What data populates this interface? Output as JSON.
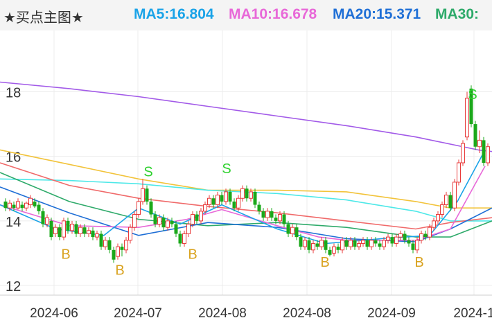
{
  "header": {
    "title": "★买点主图★",
    "ma": [
      {
        "label": "MA5:16.804",
        "color": "#1aa3e8"
      },
      {
        "label": "MA10:16.678",
        "color": "#e868d8"
      },
      {
        "label": "MA20:15.371",
        "color": "#1f6fd6"
      },
      {
        "label": "MA30:",
        "color": "#2eaa6a"
      }
    ]
  },
  "chart_data": {
    "type": "candlestick",
    "y_ticks": [
      "18",
      "16",
      "14",
      "12"
    ],
    "ylim": [
      11.7,
      19.9
    ],
    "x_ticks": [
      "2024-06",
      "2024-07",
      "2024-08",
      "2024-08",
      "2024-09",
      "2024-1"
    ],
    "colors": {
      "up": "#e83a3a",
      "down": "#1aa81a",
      "buy": "#d9a21e",
      "sell": "#2ed12e"
    },
    "series": [
      {
        "color": "#a25ae8",
        "values": [
          [
            0,
            18.3
          ],
          [
            100,
            18.1
          ],
          [
            200,
            17.85
          ],
          [
            300,
            17.55
          ],
          [
            400,
            17.25
          ],
          [
            500,
            16.95
          ],
          [
            600,
            16.6
          ],
          [
            690,
            16.2
          ],
          [
            710,
            16.15
          ]
        ]
      },
      {
        "color": "#f2c33a",
        "values": [
          [
            0,
            16.2
          ],
          [
            100,
            15.75
          ],
          [
            200,
            15.3
          ],
          [
            300,
            14.95
          ],
          [
            400,
            14.95
          ],
          [
            500,
            14.9
          ],
          [
            600,
            14.6
          ],
          [
            650,
            14.4
          ],
          [
            710,
            14.4
          ]
        ]
      },
      {
        "color": "#4de8e8",
        "values": [
          [
            0,
            15.3
          ],
          [
            100,
            15.25
          ],
          [
            200,
            15.15
          ],
          [
            300,
            14.95
          ],
          [
            400,
            14.85
          ],
          [
            500,
            14.65
          ],
          [
            600,
            14.3
          ],
          [
            650,
            14.0
          ],
          [
            710,
            14.0
          ]
        ]
      },
      {
        "color": "#f06a6a",
        "values": [
          [
            0,
            15.8
          ],
          [
            100,
            15.1
          ],
          [
            200,
            14.7
          ],
          [
            300,
            14.45
          ],
          [
            400,
            14.25
          ],
          [
            500,
            14.0
          ],
          [
            600,
            13.75
          ],
          [
            650,
            13.95
          ],
          [
            710,
            14.1
          ]
        ]
      },
      {
        "color": "#2eaa6a",
        "values": [
          [
            0,
            15.5
          ],
          [
            100,
            14.6
          ],
          [
            200,
            14.05
          ],
          [
            300,
            13.85
          ],
          [
            400,
            13.95
          ],
          [
            500,
            13.8
          ],
          [
            600,
            13.5
          ],
          [
            650,
            13.5
          ],
          [
            710,
            14.0
          ]
        ]
      },
      {
        "color": "#1f6fd6",
        "values": [
          [
            0,
            15.05
          ],
          [
            100,
            14.25
          ],
          [
            200,
            13.55
          ],
          [
            300,
            13.95
          ],
          [
            400,
            13.8
          ],
          [
            500,
            13.45
          ],
          [
            600,
            13.35
          ],
          [
            650,
            13.75
          ],
          [
            710,
            14.4
          ]
        ]
      },
      {
        "color": "#e868d8",
        "values": [
          [
            0,
            14.5
          ],
          [
            100,
            13.85
          ],
          [
            200,
            13.8
          ],
          [
            270,
            14.05
          ],
          [
            320,
            14.35
          ],
          [
            400,
            13.85
          ],
          [
            460,
            13.5
          ],
          [
            500,
            13.4
          ],
          [
            600,
            13.4
          ],
          [
            650,
            13.75
          ],
          [
            700,
            15.7
          ]
        ]
      },
      {
        "color": "#1aa3e8",
        "values": [
          [
            0,
            14.5
          ],
          [
            80,
            13.75
          ],
          [
            150,
            13.55
          ],
          [
            200,
            14.4
          ],
          [
            260,
            13.9
          ],
          [
            320,
            14.5
          ],
          [
            400,
            13.75
          ],
          [
            470,
            13.3
          ],
          [
            550,
            13.45
          ],
          [
            620,
            13.55
          ],
          [
            660,
            14.6
          ],
          [
            700,
            16.2
          ]
        ]
      }
    ],
    "candles": [
      [
        8,
        14.6,
        14.4,
        14.7,
        14.3
      ],
      [
        14,
        14.4,
        14.55,
        14.65,
        14.3
      ],
      [
        20,
        14.5,
        14.4,
        14.6,
        14.3
      ],
      [
        26,
        14.4,
        14.6,
        14.7,
        14.35
      ],
      [
        32,
        14.5,
        14.4,
        14.6,
        14.3
      ],
      [
        38,
        14.4,
        14.55,
        14.6,
        14.3
      ],
      [
        44,
        14.5,
        14.7,
        14.8,
        14.4
      ],
      [
        50,
        14.6,
        14.45,
        14.7,
        14.4
      ],
      [
        56,
        14.5,
        14.3,
        14.6,
        14.2
      ],
      [
        62,
        14.3,
        13.9,
        14.4,
        13.8
      ],
      [
        68,
        13.9,
        14.1,
        14.2,
        13.8
      ],
      [
        74,
        14.0,
        13.5,
        14.1,
        13.4
      ],
      [
        80,
        13.6,
        13.8,
        13.9,
        13.5
      ],
      [
        86,
        13.8,
        13.5,
        13.9,
        13.4
      ],
      [
        92,
        13.5,
        14.0,
        14.1,
        13.4
      ],
      [
        98,
        14.0,
        13.7,
        14.1,
        13.6
      ],
      [
        104,
        13.7,
        13.9,
        14.0,
        13.6
      ],
      [
        110,
        13.9,
        13.6,
        14.0,
        13.5
      ],
      [
        116,
        13.6,
        13.8,
        13.9,
        13.5
      ],
      [
        122,
        13.8,
        13.6,
        13.9,
        13.5
      ],
      [
        128,
        13.6,
        13.7,
        13.8,
        13.5
      ],
      [
        134,
        13.7,
        13.5,
        13.8,
        13.4
      ],
      [
        140,
        13.5,
        13.6,
        13.7,
        13.4
      ],
      [
        146,
        13.6,
        13.2,
        13.7,
        13.1
      ],
      [
        152,
        13.2,
        13.4,
        13.5,
        13.1
      ],
      [
        158,
        13.4,
        13.1,
        13.5,
        13.0
      ],
      [
        164,
        13.1,
        12.8,
        13.2,
        12.7
      ],
      [
        170,
        12.9,
        13.2,
        13.3,
        12.8
      ],
      [
        176,
        13.2,
        13.1,
        13.3,
        12.9
      ],
      [
        182,
        13.1,
        13.4,
        13.5,
        13.0
      ],
      [
        188,
        13.4,
        13.8,
        13.9,
        13.3
      ],
      [
        194,
        13.8,
        14.2,
        14.3,
        13.7
      ],
      [
        200,
        14.2,
        14.6,
        14.7,
        14.1
      ],
      [
        206,
        14.6,
        15.0,
        15.3,
        14.5
      ],
      [
        212,
        15.0,
        14.6,
        15.1,
        14.5
      ],
      [
        218,
        14.6,
        14.2,
        14.7,
        14.1
      ],
      [
        224,
        14.2,
        13.9,
        14.3,
        13.8
      ],
      [
        230,
        13.9,
        14.1,
        14.2,
        13.8
      ],
      [
        236,
        14.1,
        13.8,
        14.2,
        13.7
      ],
      [
        242,
        13.8,
        14.0,
        14.1,
        13.7
      ],
      [
        248,
        14.0,
        13.9,
        14.1,
        13.8
      ],
      [
        254,
        13.9,
        13.6,
        14.0,
        13.5
      ],
      [
        260,
        13.6,
        13.3,
        13.7,
        13.2
      ],
      [
        266,
        13.3,
        13.6,
        13.7,
        13.2
      ],
      [
        272,
        13.6,
        13.9,
        14.0,
        13.5
      ],
      [
        278,
        13.9,
        14.2,
        14.3,
        13.8
      ],
      [
        284,
        14.2,
        14.0,
        14.3,
        13.9
      ],
      [
        290,
        14.0,
        14.3,
        14.4,
        13.9
      ],
      [
        296,
        14.3,
        14.5,
        14.6,
        14.2
      ],
      [
        302,
        14.5,
        14.7,
        14.8,
        14.4
      ],
      [
        308,
        14.7,
        14.5,
        14.8,
        14.4
      ],
      [
        314,
        14.5,
        14.8,
        14.9,
        14.4
      ],
      [
        320,
        14.8,
        14.6,
        14.9,
        14.5
      ],
      [
        326,
        14.6,
        14.9,
        15.0,
        14.5
      ],
      [
        332,
        14.9,
        14.6,
        15.0,
        14.5
      ],
      [
        338,
        14.6,
        14.4,
        14.7,
        14.3
      ],
      [
        344,
        14.4,
        14.7,
        14.8,
        14.3
      ],
      [
        350,
        14.7,
        15.0,
        15.1,
        14.6
      ],
      [
        356,
        15.0,
        14.7,
        15.1,
        14.6
      ],
      [
        362,
        14.7,
        14.9,
        15.0,
        14.6
      ],
      [
        368,
        14.9,
        14.5,
        15.0,
        14.4
      ],
      [
        374,
        14.5,
        14.3,
        14.6,
        14.2
      ],
      [
        380,
        14.3,
        14.1,
        14.4,
        14.0
      ],
      [
        386,
        14.1,
        14.3,
        14.4,
        14.0
      ],
      [
        392,
        14.3,
        14.1,
        14.4,
        14.0
      ],
      [
        398,
        14.1,
        14.0,
        14.2,
        13.9
      ],
      [
        404,
        14.0,
        14.2,
        14.3,
        13.9
      ],
      [
        410,
        14.2,
        13.9,
        14.3,
        13.8
      ],
      [
        416,
        13.9,
        13.6,
        14.0,
        13.5
      ],
      [
        422,
        13.6,
        13.8,
        13.9,
        13.5
      ],
      [
        428,
        13.8,
        13.5,
        13.9,
        13.4
      ],
      [
        434,
        13.5,
        13.2,
        13.6,
        13.1
      ],
      [
        440,
        13.2,
        13.4,
        13.5,
        13.1
      ],
      [
        446,
        13.4,
        13.1,
        13.5,
        13.0
      ],
      [
        452,
        13.1,
        13.3,
        13.4,
        13.0
      ],
      [
        458,
        13.3,
        13.2,
        13.4,
        13.1
      ],
      [
        464,
        13.2,
        13.4,
        13.5,
        13.1
      ],
      [
        470,
        13.4,
        13.1,
        13.5,
        13.0
      ],
      [
        476,
        13.1,
        12.95,
        13.2,
        12.9
      ],
      [
        482,
        13.0,
        13.2,
        13.3,
        12.9
      ],
      [
        488,
        13.2,
        13.1,
        13.3,
        13.0
      ],
      [
        494,
        13.1,
        13.4,
        13.5,
        13.0
      ],
      [
        500,
        13.4,
        13.2,
        13.5,
        13.1
      ],
      [
        506,
        13.2,
        13.4,
        13.5,
        13.1
      ],
      [
        512,
        13.4,
        13.2,
        13.5,
        13.1
      ],
      [
        518,
        13.2,
        13.3,
        13.4,
        13.1
      ],
      [
        524,
        13.3,
        13.4,
        13.5,
        13.2
      ],
      [
        530,
        13.4,
        13.2,
        13.5,
        13.1
      ],
      [
        536,
        13.2,
        13.4,
        13.5,
        13.1
      ],
      [
        542,
        13.4,
        13.3,
        13.5,
        13.2
      ],
      [
        548,
        13.3,
        13.2,
        13.4,
        13.1
      ],
      [
        554,
        13.2,
        13.4,
        13.5,
        13.1
      ],
      [
        560,
        13.4,
        13.5,
        13.6,
        13.3
      ],
      [
        566,
        13.5,
        13.3,
        13.6,
        13.2
      ],
      [
        572,
        13.3,
        13.5,
        13.6,
        13.2
      ],
      [
        578,
        13.5,
        13.6,
        13.7,
        13.4
      ],
      [
        584,
        13.6,
        13.4,
        13.7,
        13.3
      ],
      [
        590,
        13.4,
        13.3,
        13.5,
        13.2
      ],
      [
        596,
        13.3,
        13.1,
        13.4,
        13.0
      ],
      [
        602,
        13.1,
        13.4,
        13.5,
        13.0
      ],
      [
        608,
        13.4,
        13.6,
        13.7,
        13.3
      ],
      [
        614,
        13.6,
        13.5,
        13.7,
        13.4
      ],
      [
        620,
        13.5,
        13.8,
        13.9,
        13.4
      ],
      [
        626,
        13.8,
        14.0,
        14.1,
        13.7
      ],
      [
        632,
        14.0,
        14.2,
        14.3,
        13.9
      ],
      [
        638,
        14.2,
        14.5,
        14.6,
        14.1
      ],
      [
        644,
        14.5,
        14.8,
        14.9,
        14.4
      ],
      [
        650,
        14.8,
        14.4,
        14.9,
        14.3
      ],
      [
        656,
        14.4,
        15.2,
        15.3,
        14.3
      ],
      [
        662,
        15.2,
        15.8,
        15.9,
        15.1
      ],
      [
        668,
        15.8,
        16.4,
        16.5,
        15.7
      ],
      [
        674,
        16.6,
        17.8,
        18.0,
        16.5
      ],
      [
        680,
        18.1,
        17.0,
        18.2,
        16.9
      ],
      [
        686,
        17.0,
        16.3,
        17.1,
        16.2
      ],
      [
        692,
        16.3,
        16.5,
        16.8,
        16.1
      ],
      [
        698,
        16.5,
        15.8,
        16.6,
        15.7
      ],
      [
        704,
        15.8,
        16.3,
        16.4,
        15.7
      ]
    ],
    "signals": [
      {
        "t": "B",
        "x": 95,
        "p": 13.0
      },
      {
        "t": "B",
        "x": 173,
        "p": 12.5
      },
      {
        "t": "S",
        "x": 214,
        "p": 15.55
      },
      {
        "t": "B",
        "x": 278,
        "p": 13.0
      },
      {
        "t": "S",
        "x": 327,
        "p": 15.65
      },
      {
        "t": "B",
        "x": 469,
        "p": 12.75
      },
      {
        "t": "B",
        "x": 605,
        "p": 12.75
      },
      {
        "t": "S",
        "x": 682,
        "p": 17.95
      }
    ]
  }
}
